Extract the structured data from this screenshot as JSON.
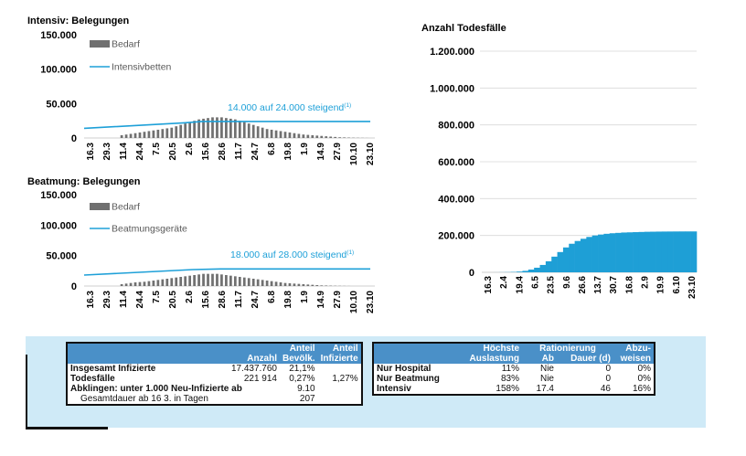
{
  "colors": {
    "bar_gray": "#707070",
    "line_blue": "#1ea0d8",
    "bar_blue": "#1e9fd6",
    "panel_bg": "#cfeaf7",
    "header_blue": "#4a90c8"
  },
  "chart_data": [
    {
      "type": "bar",
      "title": "Intensiv: Belegungen",
      "ylim": [
        0,
        150000
      ],
      "yticks": [
        "0",
        "50.000",
        "100.000",
        "150.000"
      ],
      "xticks": [
        "16.3",
        "29.3",
        "11.4",
        "24.4",
        "7.5",
        "20.5",
        "2.6",
        "15.6",
        "28.6",
        "11.7",
        "24.7",
        "6.8",
        "19.8",
        "1.9",
        "14.9",
        "27.9",
        "10.10",
        "23.10"
      ],
      "legend": [
        "Bedarf",
        "Intensivbetten"
      ],
      "annotation": "14.000 auf 24.000 steigend",
      "annotation_sup": "(1)",
      "series": [
        {
          "name": "Bedarf",
          "kind": "bar",
          "start": 0,
          "values": [
            4000,
            5000,
            6000,
            7000,
            8000,
            9000,
            10000,
            11000,
            12000,
            13000,
            14000,
            15000,
            17000,
            19000,
            21000,
            23000,
            25000,
            27000,
            28000,
            29000,
            30000,
            30000,
            30000,
            29000,
            28000,
            27000,
            25000,
            23000,
            21000,
            19000,
            17000,
            15000,
            13000,
            12000,
            11000,
            10000,
            9000,
            8000,
            7000,
            6000,
            5000,
            4500,
            4000,
            3500,
            3000,
            2500,
            2000,
            1500,
            1000,
            800,
            600,
            400,
            300,
            200,
            100
          ]
        },
        {
          "name": "Intensivbetten",
          "kind": "line",
          "points": [
            [
              0,
              14000
            ],
            [
              22,
              22000
            ],
            [
              26,
              24000
            ],
            [
              63,
              24000
            ]
          ]
        }
      ]
    },
    {
      "type": "bar",
      "title": "Beatmung: Belegungen",
      "ylim": [
        0,
        150000
      ],
      "yticks": [
        "0",
        "50.000",
        "100.000",
        "150.000"
      ],
      "xticks": [
        "16.3",
        "29.3",
        "11.4",
        "24.4",
        "7.5",
        "20.5",
        "2.6",
        "15.6",
        "28.6",
        "11.7",
        "24.7",
        "6.8",
        "19.8",
        "1.9",
        "14.9",
        "27.9",
        "10.10",
        "23.10"
      ],
      "legend": [
        "Bedarf",
        "Beatmungsgeräte"
      ],
      "annotation": "18.000 auf 28.000 steigend",
      "annotation_sup": "(1)",
      "series": [
        {
          "name": "Bedarf",
          "kind": "bar",
          "start": 0,
          "values": [
            3000,
            4000,
            5000,
            6000,
            6500,
            7000,
            8000,
            9000,
            10000,
            11000,
            12000,
            13000,
            14000,
            15000,
            16000,
            17000,
            18000,
            19000,
            20000,
            20000,
            20000,
            20000,
            19000,
            18000,
            17000,
            16000,
            15000,
            14000,
            13000,
            12000,
            11000,
            10000,
            9000,
            8000,
            7000,
            6000,
            5000,
            4500,
            4000,
            3500,
            3000,
            2500,
            2000,
            1500,
            1000,
            800,
            600,
            400,
            300,
            200,
            100
          ]
        },
        {
          "name": "Beatmungsgeräte",
          "kind": "line",
          "points": [
            [
              0,
              18000
            ],
            [
              24,
              27000
            ],
            [
              30,
              28000
            ],
            [
              63,
              28000
            ]
          ]
        }
      ]
    },
    {
      "type": "area",
      "title": "Anzahl Todesfälle",
      "ylim": [
        0,
        1200000
      ],
      "yticks": [
        "0",
        "200.000",
        "400.000",
        "600.000",
        "800.000",
        "1.000.000",
        "1.200.000"
      ],
      "xticks": [
        "16.3",
        "2.4",
        "19.4",
        "6.5",
        "23.5",
        "9.6",
        "26.6",
        "13.7",
        "30.7",
        "16.8",
        "2.9",
        "19.9",
        "6.10",
        "23.10"
      ],
      "series": [
        {
          "name": "Todesfälle",
          "values": [
            0,
            0,
            200,
            500,
            1000,
            2000,
            4000,
            8000,
            15000,
            25000,
            40000,
            60000,
            85000,
            110000,
            135000,
            155000,
            170000,
            182000,
            192000,
            200000,
            205000,
            209000,
            212000,
            214000,
            216000,
            217000,
            218000,
            219000,
            220000,
            220500,
            221000,
            221300,
            221500,
            221700,
            221800,
            221900,
            221914
          ]
        }
      ]
    }
  ],
  "table_left": {
    "headers": [
      "",
      "Anzahl",
      "Anteil\nBevölk.",
      "Anteil\nInfizierte"
    ],
    "header_top": [
      "",
      "",
      "Anteil",
      "Anteil"
    ],
    "header_bottom": [
      "",
      "Anzahl",
      "Bevölk.",
      "Infizierte"
    ],
    "rows": [
      [
        "Insgesamt Infizierte",
        "17.437.760",
        "21,1%",
        ""
      ],
      [
        "Todesfälle",
        "221 914",
        "0,27%",
        "1,27%"
      ],
      [
        "Abklingen: unter 1.000 Neu-Infizierte ab",
        "",
        "9.10",
        ""
      ],
      [
        "Gesamtdauer ab 16 3. in Tagen",
        "",
        "207",
        ""
      ]
    ]
  },
  "table_right": {
    "header_top": [
      "",
      "Höchste",
      "Rationierung",
      "",
      "Abzu-"
    ],
    "header_bottom": [
      "",
      "Auslastung",
      "Ab",
      "Dauer (d)",
      "weisen"
    ],
    "rows": [
      [
        "Nur Hospital",
        "11%",
        "Nie",
        "0",
        "0%"
      ],
      [
        "Nur Beatmung",
        "83%",
        "Nie",
        "0",
        "0%"
      ],
      [
        "Intensiv",
        "158%",
        "17.4",
        "46",
        "16%"
      ]
    ]
  }
}
